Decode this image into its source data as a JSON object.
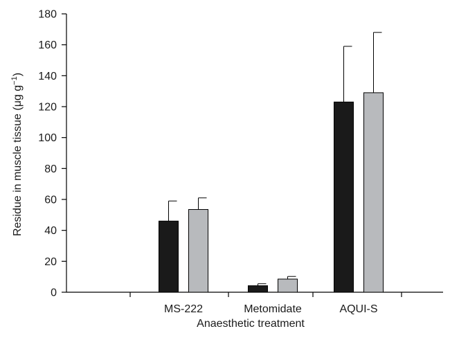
{
  "chart_data": {
    "type": "bar",
    "xlabel": "Anaesthetic treatment",
    "ylabel_main": "Residue in muscle tissue (μg g",
    "ylabel_sup": "−1",
    "ylabel_end": ")",
    "categories": [
      "MS-222",
      "Metomidate",
      "AQUI-S"
    ],
    "ylim": [
      0,
      180
    ],
    "yticks": [
      0,
      20,
      40,
      60,
      80,
      100,
      120,
      140,
      160,
      180
    ],
    "series": [
      {
        "color": "#1a1a1a",
        "values": [
          46,
          4.2,
          123
        ],
        "errors": [
          13,
          1.3,
          36
        ]
      },
      {
        "color": "#b8babd",
        "values": [
          53.5,
          8.5,
          129
        ],
        "errors": [
          7.5,
          1.7,
          39
        ]
      }
    ],
    "grid": false,
    "legend": false
  }
}
